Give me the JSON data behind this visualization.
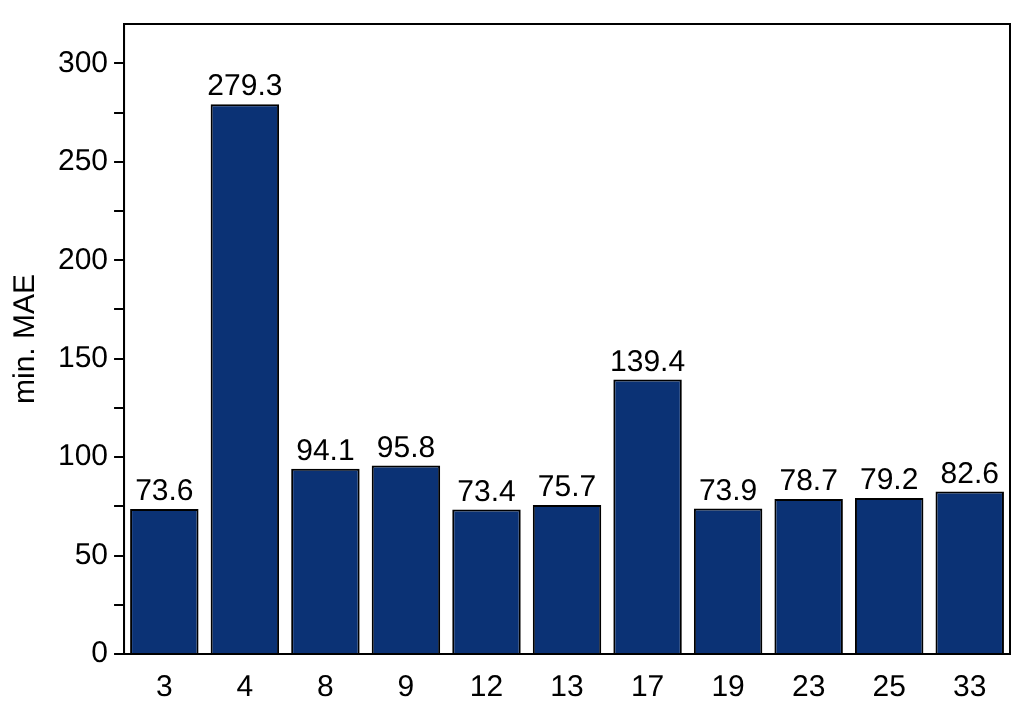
{
  "chart_data": {
    "type": "bar",
    "ylabel": "min. MAE",
    "categories": [
      "3",
      "4",
      "8",
      "9",
      "12",
      "13",
      "17",
      "19",
      "23",
      "25",
      "33"
    ],
    "values": [
      73.6,
      279.3,
      94.1,
      95.8,
      73.4,
      75.7,
      139.4,
      73.9,
      78.7,
      79.2,
      82.6
    ],
    "color": "#0b3275",
    "ylim": [
      0,
      320
    ],
    "yticks": [
      0,
      {
        "value": 25,
        "label": null
      },
      50,
      {
        "value": 75,
        "label": null
      },
      100,
      {
        "value": 125,
        "label": null
      },
      150,
      {
        "value": 175,
        "label": null
      },
      200,
      {
        "value": 225,
        "label": null
      },
      250,
      {
        "value": 275,
        "label": null
      },
      300
    ],
    "grid": false,
    "legend": false,
    "data_labels": true
  }
}
